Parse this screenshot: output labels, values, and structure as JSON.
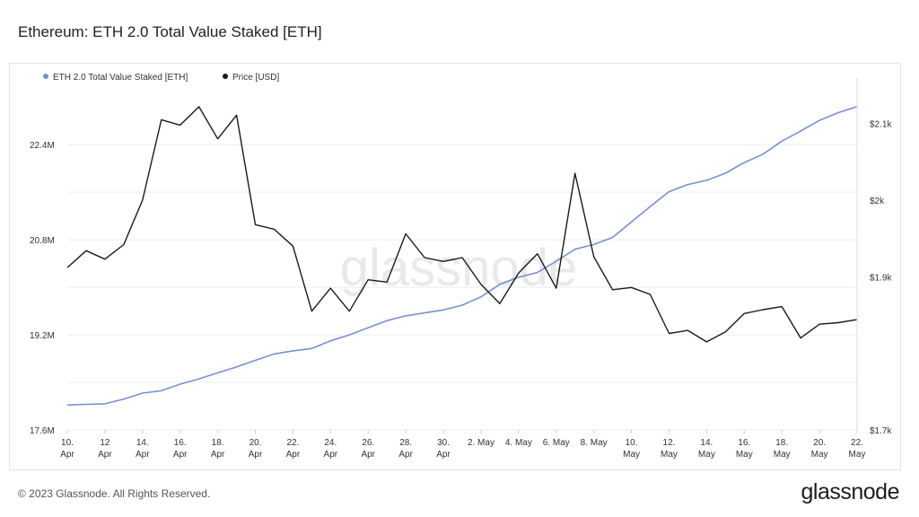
{
  "title": "Ethereum: ETH 2.0 Total Value Staked [ETH]",
  "footer": "© 2023 Glassnode. All Rights Reserved.",
  "brand": "glassnode",
  "watermark": "glassnode",
  "colors": {
    "staked": "#7a8fd1",
    "price": "#1a1a1a",
    "grid": "#ececec"
  },
  "chart_data": {
    "type": "line",
    "x": [
      "10 Apr",
      "11 Apr",
      "12 Apr",
      "13 Apr",
      "14 Apr",
      "15 Apr",
      "16 Apr",
      "17 Apr",
      "18 Apr",
      "19 Apr",
      "20 Apr",
      "21 Apr",
      "22 Apr",
      "23 Apr",
      "24 Apr",
      "25 Apr",
      "26 Apr",
      "27 Apr",
      "28 Apr",
      "29 Apr",
      "30 Apr",
      "1 May",
      "2 May",
      "3 May",
      "4 May",
      "5 May",
      "6 May",
      "7 May",
      "8 May",
      "9 May",
      "10 May",
      "11 May",
      "12 May",
      "13 May",
      "14 May",
      "15 May",
      "16 May",
      "17 May",
      "18 May",
      "19 May",
      "20 May",
      "21 May",
      "22 May"
    ],
    "x_ticks": [
      {
        "i": 0,
        "l1": "10.",
        "l2": "Apr"
      },
      {
        "i": 2,
        "l1": "12",
        "l2": "Apr"
      },
      {
        "i": 4,
        "l1": "14.",
        "l2": "Apr"
      },
      {
        "i": 6,
        "l1": "16.",
        "l2": "Apr"
      },
      {
        "i": 8,
        "l1": "18.",
        "l2": "Apr"
      },
      {
        "i": 10,
        "l1": "20.",
        "l2": "Apr"
      },
      {
        "i": 12,
        "l1": "22.",
        "l2": "Apr"
      },
      {
        "i": 14,
        "l1": "24.",
        "l2": "Apr"
      },
      {
        "i": 16,
        "l1": "26.",
        "l2": "Apr"
      },
      {
        "i": 18,
        "l1": "28.",
        "l2": "Apr"
      },
      {
        "i": 20,
        "l1": "30.",
        "l2": "Apr"
      },
      {
        "i": 22,
        "l1": "2. May",
        "l2": ""
      },
      {
        "i": 24,
        "l1": "4. May",
        "l2": ""
      },
      {
        "i": 26,
        "l1": "6. May",
        "l2": ""
      },
      {
        "i": 28,
        "l1": "8. May",
        "l2": ""
      },
      {
        "i": 30,
        "l1": "10.",
        "l2": "May"
      },
      {
        "i": 32,
        "l1": "12.",
        "l2": "May"
      },
      {
        "i": 34,
        "l1": "14.",
        "l2": "May"
      },
      {
        "i": 36,
        "l1": "16.",
        "l2": "May"
      },
      {
        "i": 38,
        "l1": "18.",
        "l2": "May"
      },
      {
        "i": 40,
        "l1": "20.",
        "l2": "May"
      },
      {
        "i": 42,
        "l1": "22.",
        "l2": "May"
      }
    ],
    "y_left": {
      "min": 17.6,
      "max": 23.4,
      "ticks": [
        17.6,
        19.2,
        20.8,
        22.4
      ],
      "labels": [
        "17.6M",
        "19.2M",
        "20.8M",
        "22.4M"
      ],
      "grid": [
        18.4,
        20.0,
        21.6
      ]
    },
    "y_right": {
      "min": 1700,
      "max": 2150,
      "ticks": [
        1700,
        1800,
        1900,
        2000,
        2100
      ],
      "labels": [
        "$1.7k",
        "",
        "$1.9k",
        "$2k",
        "$2.1k"
      ]
    },
    "series": [
      {
        "name": "ETH 2.0 Total Value Staked [ETH]",
        "axis": "left",
        "color": "#7a8fd1",
        "values": [
          18.02,
          18.03,
          18.04,
          18.12,
          18.22,
          18.26,
          18.37,
          18.46,
          18.56,
          18.66,
          18.77,
          18.88,
          18.93,
          18.97,
          19.1,
          19.2,
          19.32,
          19.44,
          19.52,
          19.57,
          19.62,
          19.7,
          19.84,
          20.05,
          20.17,
          20.25,
          20.44,
          20.64,
          20.72,
          20.84,
          21.1,
          21.36,
          21.61,
          21.73,
          21.8,
          21.92,
          22.1,
          22.24,
          22.46,
          22.63,
          22.81,
          22.94,
          23.04
        ]
      },
      {
        "name": "Price [USD]",
        "axis": "right",
        "color": "#1a1a1a",
        "values": [
          1912,
          1934,
          1923,
          1942,
          2000,
          2105,
          2098,
          2122,
          2080,
          2111,
          1968,
          1962,
          1940,
          1855,
          1885,
          1855,
          1896,
          1893,
          1956,
          1925,
          1920,
          1925,
          1890,
          1865,
          1905,
          1930,
          1885,
          2035,
          1926,
          1883,
          1886,
          1877,
          1826,
          1830,
          1815,
          1828,
          1852,
          1857,
          1861,
          1820,
          1838,
          1840,
          1844
        ]
      }
    ]
  }
}
